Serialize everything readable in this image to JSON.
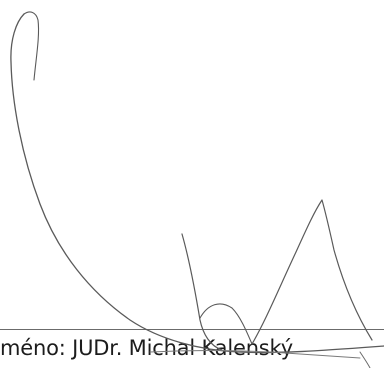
{
  "signature_block": {
    "caption": "méno: JUDr. Michal Kalenský",
    "signature": "handwritten signature",
    "ink_color": "#5a5a5a",
    "line_color": "#6b6b6b"
  }
}
